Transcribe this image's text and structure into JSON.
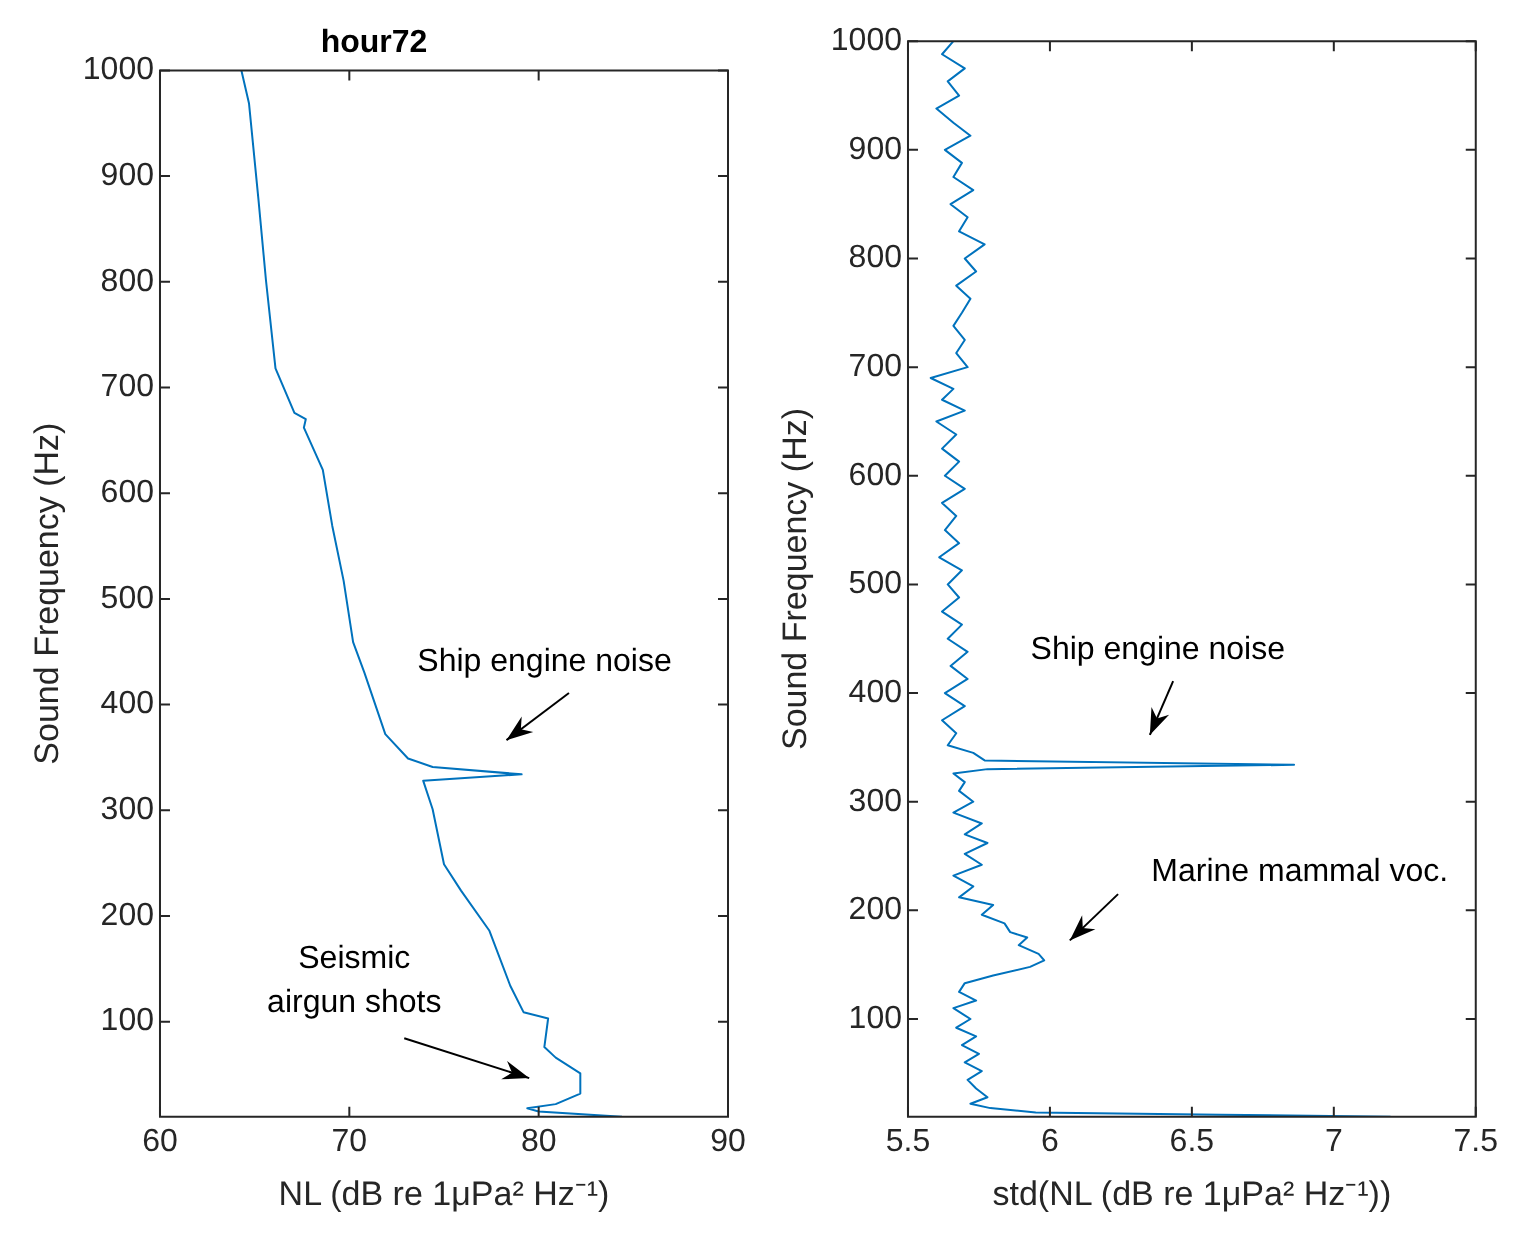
{
  "chart_data": [
    {
      "type": "line",
      "title": "hour72",
      "xlabel": "NL (dB re 1μPa² Hz⁻¹)",
      "ylabel": "Sound Frequency (Hz)",
      "xlim": [
        60,
        90
      ],
      "xticks": [
        60,
        70,
        80,
        90
      ],
      "ylim": [
        10,
        1000
      ],
      "yticks": [
        100,
        200,
        300,
        400,
        500,
        600,
        700,
        800,
        900,
        1000
      ],
      "grid": false,
      "legend": false,
      "series": [
        {
          "color": "#0072bd",
          "x": [
            64.3,
            64.7,
            65.2,
            65.6,
            66.1,
            67.1,
            67.7,
            67.6,
            68.6,
            69.1,
            69.7,
            70.2,
            70.8,
            71.9,
            73.1,
            74.4,
            79.1,
            73.9,
            74.4,
            75.0,
            75.9,
            77.4,
            78.5,
            79.2,
            80.5,
            80.3,
            80.9,
            82.2,
            82.2,
            80.9,
            79.4,
            80.0,
            84.4
          ],
          "values": [
            1000,
            969,
            878,
            801,
            718,
            676,
            670,
            662,
            622,
            569,
            517,
            459,
            430,
            372,
            349,
            341,
            334,
            328,
            301,
            249,
            224,
            186,
            134,
            109,
            103,
            76,
            66,
            51,
            32,
            22,
            18,
            15,
            10
          ]
        }
      ],
      "annotations": [
        "Ship engine noise",
        "Seismic\nairgun shots"
      ]
    },
    {
      "type": "line",
      "xlabel": "std(NL (dB re 1μPa² Hz⁻¹))",
      "ylabel": "Sound Frequency (Hz)",
      "xlim": [
        5.5,
        7.5
      ],
      "xticks": [
        5.5,
        6,
        6.5,
        7,
        7.5
      ],
      "ylim": [
        10,
        1000
      ],
      "yticks": [
        100,
        200,
        300,
        400,
        500,
        600,
        700,
        800,
        900,
        1000
      ],
      "grid": false,
      "legend": false,
      "series": [
        {
          "color": "#0072bd",
          "x": [
            5.66,
            5.62,
            5.7,
            5.64,
            5.68,
            5.6,
            5.66,
            5.72,
            5.63,
            5.69,
            5.66,
            5.73,
            5.65,
            5.71,
            5.68,
            5.77,
            5.7,
            5.74,
            5.67,
            5.72,
            5.69,
            5.66,
            5.7,
            5.67,
            5.71,
            5.58,
            5.66,
            5.62,
            5.7,
            5.6,
            5.67,
            5.62,
            5.68,
            5.63,
            5.7,
            5.62,
            5.67,
            5.63,
            5.68,
            5.61,
            5.69,
            5.64,
            5.68,
            5.62,
            5.69,
            5.64,
            5.71,
            5.65,
            5.71,
            5.63,
            5.7,
            5.62,
            5.67,
            5.64,
            5.73,
            5.77,
            6.86,
            5.78,
            5.66,
            5.7,
            5.68,
            5.73,
            5.66,
            5.76,
            5.7,
            5.78,
            5.7,
            5.76,
            5.66,
            5.73,
            5.68,
            5.8,
            5.76,
            5.84,
            5.86,
            5.92,
            5.89,
            5.96,
            5.98,
            5.93,
            5.8,
            5.7,
            5.68,
            5.74,
            5.66,
            5.72,
            5.67,
            5.74,
            5.69,
            5.75,
            5.7,
            5.76,
            5.71,
            5.74,
            5.78,
            5.72,
            5.79,
            5.95,
            6.6,
            7.2
          ],
          "values": [
            1000,
            988,
            975,
            963,
            950,
            938,
            925,
            913,
            900,
            888,
            875,
            863,
            850,
            838,
            825,
            813,
            800,
            788,
            775,
            763,
            750,
            738,
            725,
            713,
            700,
            690,
            680,
            670,
            660,
            650,
            638,
            625,
            613,
            600,
            588,
            575,
            563,
            550,
            538,
            525,
            513,
            500,
            488,
            475,
            463,
            450,
            438,
            425,
            413,
            400,
            388,
            375,
            363,
            352,
            345,
            338,
            334,
            330,
            326,
            318,
            310,
            300,
            290,
            280,
            270,
            262,
            252,
            242,
            232,
            222,
            212,
            205,
            196,
            188,
            180,
            175,
            168,
            160,
            154,
            148,
            140,
            133,
            125,
            117,
            110,
            100,
            92,
            84,
            76,
            68,
            60,
            52,
            44,
            36,
            28,
            22,
            18,
            14,
            12,
            10
          ]
        }
      ],
      "annotations": [
        "Ship engine noise",
        "Marine mammal voc."
      ]
    }
  ]
}
